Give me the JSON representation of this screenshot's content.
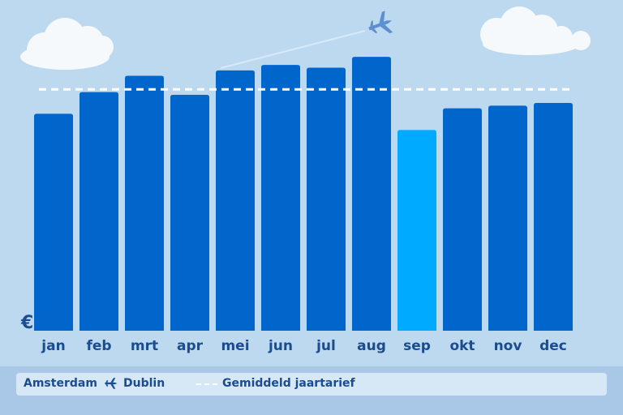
{
  "currency_label": "€",
  "legend": {
    "origin": "Amsterdam",
    "destination": "Dublin",
    "route_icon": "airplane-icon",
    "average_label": "Gemiddeld jaartarief"
  },
  "colors": {
    "background": "#bdd9f0",
    "bar": "#0066cc",
    "bar_highlight": "#00aaff",
    "average_line": "#ffffff",
    "label": "#1b4c8f",
    "cloud": "#ffffff",
    "airplane": "#5b8fd0"
  },
  "chart_data": {
    "type": "bar",
    "categories": [
      "jan",
      "feb",
      "mrt",
      "apr",
      "mei",
      "jun",
      "jul",
      "aug",
      "sep",
      "okt",
      "nov",
      "dec"
    ],
    "values": [
      80,
      88,
      94,
      87,
      96,
      98,
      97,
      101,
      74,
      82,
      83,
      84
    ],
    "highlight_index": 8,
    "average": 89,
    "ylabel": "€",
    "ylim": [
      0,
      110
    ],
    "grid": false,
    "legend_position": "bottom"
  }
}
